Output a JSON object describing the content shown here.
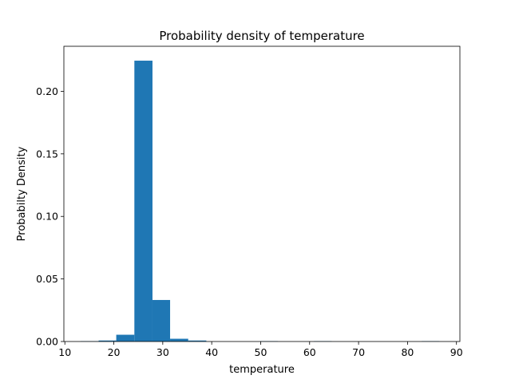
{
  "chart_data": {
    "type": "bar",
    "title": "Probability density of temperature",
    "xlabel": "temperature",
    "ylabel": "Probabilty Density",
    "xlim": [
      9.8,
      90.7
    ],
    "ylim": [
      0,
      0.236
    ],
    "xticks": [
      10,
      20,
      30,
      40,
      50,
      60,
      70,
      80,
      90
    ],
    "xtick_labels": [
      "10",
      "20",
      "30",
      "40",
      "50",
      "60",
      "70",
      "80",
      "90"
    ],
    "yticks": [
      0.0,
      0.05,
      0.1,
      0.15,
      0.2
    ],
    "ytick_labels": [
      "0.00",
      "0.05",
      "0.10",
      "0.15",
      "0.20"
    ],
    "grid": false,
    "legend": "none",
    "bar_color": "#1f77b4",
    "bin_edges": [
      13.2,
      16.9,
      20.5,
      24.2,
      27.9,
      31.5,
      35.2,
      38.9,
      42.5,
      46.2,
      49.9,
      53.5,
      57.2,
      60.9,
      64.5,
      68.2,
      71.9,
      75.5,
      79.2,
      82.9,
      86.5
    ],
    "values": [
      0.0003,
      0.0008,
      0.0054,
      0.2245,
      0.0332,
      0.0022,
      0.0008,
      0.0,
      0.0,
      0.0,
      0.0003,
      0.0,
      0.0,
      0.0003,
      0.0,
      0.0,
      0.0,
      0.0,
      0.0,
      0.0003
    ]
  }
}
